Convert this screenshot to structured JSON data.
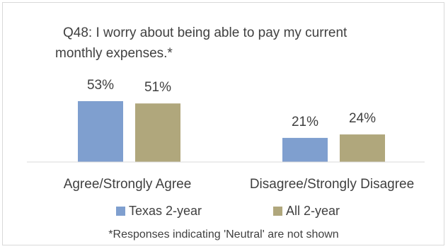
{
  "chart_data": {
    "type": "bar",
    "title": "Q48: I worry about being able to pay my current monthly expenses.*",
    "title_lines": [
      "Q48: I worry about being able to pay my current",
      "monthly expenses.*"
    ],
    "categories": [
      "Agree/Strongly Agree",
      "Disagree/Strongly Disagree"
    ],
    "series": [
      {
        "name": "Texas 2-year",
        "values": [
          53,
          21
        ],
        "labels": [
          "53%",
          "21%"
        ],
        "color": "#7f9fcf"
      },
      {
        "name": "All 2-year",
        "values": [
          51,
          24
        ],
        "labels": [
          "51%",
          "24%"
        ],
        "color": "#b0a77c"
      }
    ],
    "ylim": [
      0,
      100
    ],
    "grid": false,
    "legend_position": "bottom",
    "footnote": "*Responses indicating 'Neutral' are not shown"
  }
}
